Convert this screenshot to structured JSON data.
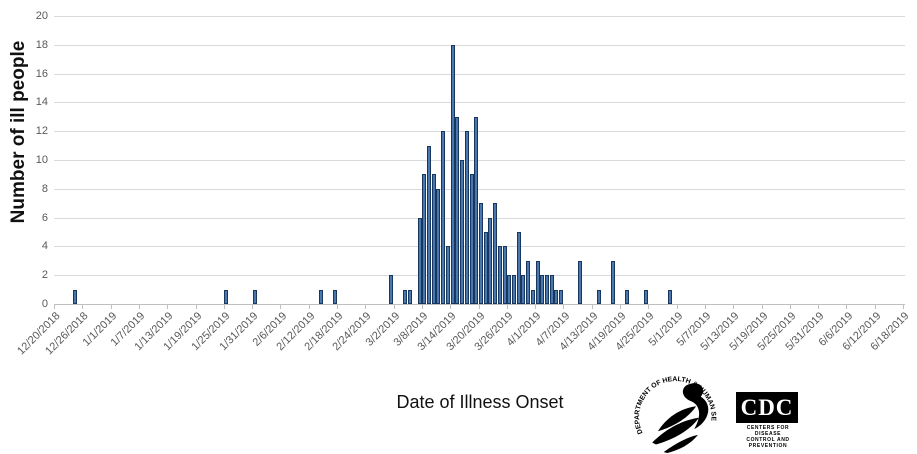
{
  "chart_data": {
    "type": "bar",
    "title": "",
    "xlabel": "Date of Illness Onset",
    "ylabel": "Number of ill people",
    "ylim": [
      0,
      20
    ],
    "ytick_step": 2,
    "ytick_labels": [
      "0",
      "2",
      "4",
      "6",
      "8",
      "10",
      "12",
      "14",
      "16",
      "18",
      "20"
    ],
    "grid": "horizontal gridlines on",
    "legend": "none",
    "bar_color": "#4a77ae",
    "bar_border_color": "#17375e",
    "gridline_color": "#d9d9d9",
    "axis_line_color": "#bfbfbf",
    "tick_label_color": "#595959",
    "x_axis": {
      "start_date": "12/20/2018",
      "end_date": "6/18/2019",
      "unit": "day",
      "tick_every_days": 6
    },
    "xtick_labels": [
      "12/20/2018",
      "12/26/2018",
      "1/1/2019",
      "1/7/2019",
      "1/13/2019",
      "1/19/2019",
      "1/25/2019",
      "1/31/2019",
      "2/6/2019",
      "2/12/2019",
      "2/18/2019",
      "2/24/2019",
      "3/2/2019",
      "3/8/2019",
      "3/14/2019",
      "3/20/2019",
      "3/26/2019",
      "4/1/2019",
      "4/7/2019",
      "4/13/2019",
      "4/19/2019",
      "4/25/2019",
      "5/1/2019",
      "5/7/2019",
      "5/13/2019",
      "5/19/2019",
      "5/25/2019",
      "5/31/2019",
      "6/6/2019",
      "6/12/2019",
      "6/18/2019"
    ],
    "points": [
      {
        "date": "12/24/2018",
        "value": 1
      },
      {
        "date": "1/25/2019",
        "value": 1
      },
      {
        "date": "1/31/2019",
        "value": 1
      },
      {
        "date": "2/14/2019",
        "value": 1
      },
      {
        "date": "2/17/2019",
        "value": 1
      },
      {
        "date": "3/1/2019",
        "value": 2
      },
      {
        "date": "3/4/2019",
        "value": 1
      },
      {
        "date": "3/5/2019",
        "value": 1
      },
      {
        "date": "3/7/2019",
        "value": 6
      },
      {
        "date": "3/8/2019",
        "value": 9
      },
      {
        "date": "3/9/2019",
        "value": 11
      },
      {
        "date": "3/10/2019",
        "value": 9
      },
      {
        "date": "3/11/2019",
        "value": 8
      },
      {
        "date": "3/12/2019",
        "value": 12
      },
      {
        "date": "3/13/2019",
        "value": 4
      },
      {
        "date": "3/14/2019",
        "value": 18
      },
      {
        "date": "3/15/2019",
        "value": 13
      },
      {
        "date": "3/16/2019",
        "value": 10
      },
      {
        "date": "3/17/2019",
        "value": 12
      },
      {
        "date": "3/18/2019",
        "value": 9
      },
      {
        "date": "3/19/2019",
        "value": 13
      },
      {
        "date": "3/20/2019",
        "value": 7
      },
      {
        "date": "3/21/2019",
        "value": 5
      },
      {
        "date": "3/22/2019",
        "value": 6
      },
      {
        "date": "3/23/2019",
        "value": 7
      },
      {
        "date": "3/24/2019",
        "value": 4
      },
      {
        "date": "3/25/2019",
        "value": 4
      },
      {
        "date": "3/26/2019",
        "value": 2
      },
      {
        "date": "3/27/2019",
        "value": 2
      },
      {
        "date": "3/28/2019",
        "value": 5
      },
      {
        "date": "3/29/2019",
        "value": 2
      },
      {
        "date": "3/30/2019",
        "value": 3
      },
      {
        "date": "3/31/2019",
        "value": 1
      },
      {
        "date": "4/1/2019",
        "value": 3
      },
      {
        "date": "4/2/2019",
        "value": 2
      },
      {
        "date": "4/3/2019",
        "value": 2
      },
      {
        "date": "4/4/2019",
        "value": 2
      },
      {
        "date": "4/5/2019",
        "value": 1
      },
      {
        "date": "4/6/2019",
        "value": 1
      },
      {
        "date": "4/10/2019",
        "value": 3
      },
      {
        "date": "4/14/2019",
        "value": 1
      },
      {
        "date": "4/17/2019",
        "value": 3
      },
      {
        "date": "4/20/2019",
        "value": 1
      },
      {
        "date": "4/24/2019",
        "value": 1
      },
      {
        "date": "4/29/2019",
        "value": 1
      }
    ]
  },
  "footer_logos": {
    "hhs_circle_text": "DEPARTMENT OF HEALTH & HUMAN SERVICES • USA",
    "cdc_acronym": "CDC",
    "cdc_name_line1": "CENTERS FOR DISEASE",
    "cdc_name_line2": "CONTROL AND PREVENTION"
  }
}
